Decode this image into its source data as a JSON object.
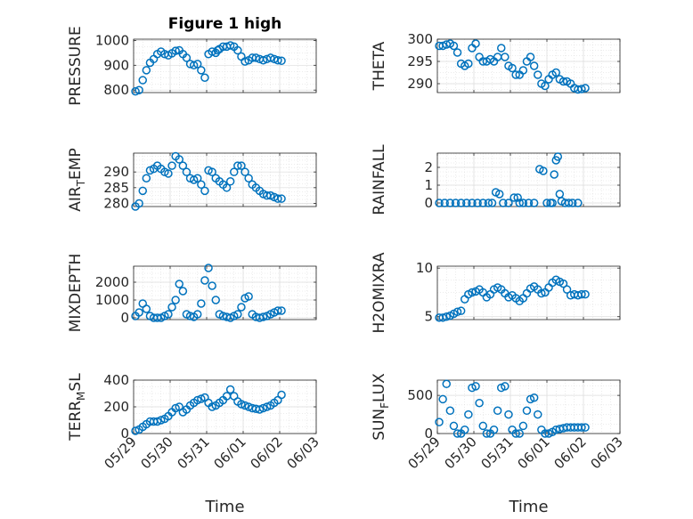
{
  "page_title": "Figure 1 high",
  "chart_data": [
    {
      "type": "scatter",
      "title": "Figure 1 high",
      "xlabel": "",
      "ylabel": "PRESSURE",
      "ylim": [
        790,
        1005
      ],
      "yticks": [
        800,
        900,
        1000
      ],
      "xlim": [
        "05/29",
        "06/03"
      ],
      "xticks": [
        "05/29",
        "05/30",
        "05/31",
        "06/01",
        "06/02",
        "06/03"
      ],
      "grid": true,
      "series": [
        {
          "color": "#0072BD",
          "marker": "circle-open",
          "x": [
            0.05,
            0.15,
            0.25,
            0.35,
            0.45,
            0.55,
            0.65,
            0.75,
            0.85,
            0.95,
            1.05,
            1.15,
            1.25,
            1.35,
            1.45,
            1.55,
            1.65,
            1.75,
            1.85,
            1.95,
            2.05,
            2.15,
            2.25,
            2.3,
            2.35,
            2.45,
            2.55,
            2.65,
            2.75,
            2.85,
            2.95,
            3.05,
            3.15,
            3.25,
            3.35,
            3.45,
            3.55,
            3.65,
            3.75,
            3.85,
            3.95,
            4.05
          ],
          "y": [
            795,
            800,
            840,
            880,
            910,
            925,
            945,
            955,
            945,
            940,
            948,
            958,
            960,
            945,
            930,
            905,
            900,
            905,
            880,
            850,
            945,
            955,
            950,
            960,
            965,
            975,
            975,
            980,
            975,
            960,
            935,
            915,
            920,
            930,
            930,
            925,
            920,
            925,
            930,
            925,
            920,
            918
          ]
        }
      ]
    },
    {
      "type": "scatter",
      "title": "",
      "xlabel": "",
      "ylabel": "THETA",
      "ylim": [
        288,
        300
      ],
      "yticks": [
        290,
        295,
        300
      ],
      "xlim": [
        "05/29",
        "06/03"
      ],
      "xticks": [
        "05/29",
        "05/30",
        "05/31",
        "06/01",
        "06/02",
        "06/03"
      ],
      "grid": true,
      "series": [
        {
          "color": "#0072BD",
          "marker": "circle-open",
          "x": [
            0.05,
            0.15,
            0.25,
            0.35,
            0.45,
            0.55,
            0.65,
            0.75,
            0.85,
            0.95,
            1.05,
            1.15,
            1.25,
            1.35,
            1.45,
            1.55,
            1.65,
            1.75,
            1.85,
            1.95,
            2.05,
            2.15,
            2.25,
            2.35,
            2.45,
            2.55,
            2.65,
            2.75,
            2.85,
            2.95,
            3.05,
            3.15,
            3.25,
            3.35,
            3.45,
            3.55,
            3.65,
            3.75,
            3.85,
            3.95,
            4.05
          ],
          "y": [
            298.5,
            298.5,
            298.8,
            299,
            298.5,
            297,
            294.5,
            294,
            294.5,
            298,
            299,
            296,
            295,
            295,
            295.5,
            295,
            296,
            298,
            296,
            294,
            293.5,
            292,
            292,
            293,
            295,
            296,
            294,
            292,
            290,
            289.5,
            291,
            292,
            292.5,
            291,
            290.5,
            290.5,
            290,
            289,
            288.7,
            288.8,
            289
          ]
        }
      ]
    },
    {
      "type": "scatter",
      "title": "",
      "xlabel": "",
      "ylabel": "AIR_TEMP",
      "ylim": [
        279,
        296
      ],
      "yticks": [
        280,
        285,
        290
      ],
      "xlim": [
        "05/29",
        "06/03"
      ],
      "xticks": [
        "05/29",
        "05/30",
        "05/31",
        "06/01",
        "06/02",
        "06/03"
      ],
      "grid": true,
      "series": [
        {
          "color": "#0072BD",
          "marker": "circle-open",
          "x": [
            0.05,
            0.15,
            0.25,
            0.35,
            0.45,
            0.55,
            0.65,
            0.75,
            0.85,
            0.95,
            1.05,
            1.15,
            1.25,
            1.35,
            1.45,
            1.55,
            1.65,
            1.75,
            1.85,
            1.95,
            2.05,
            2.15,
            2.25,
            2.35,
            2.45,
            2.55,
            2.65,
            2.75,
            2.85,
            2.95,
            3.05,
            3.15,
            3.25,
            3.35,
            3.45,
            3.55,
            3.65,
            3.75,
            3.85,
            3.95,
            4.05
          ],
          "y": [
            279,
            280,
            284,
            288,
            290.5,
            291,
            292,
            291,
            290,
            289.5,
            292,
            295,
            294,
            292,
            290,
            288,
            287.5,
            288,
            286,
            284,
            290.5,
            290,
            288,
            287,
            286,
            285,
            287,
            290,
            292,
            292,
            290,
            288,
            286,
            285,
            284,
            283,
            282.5,
            282.5,
            282,
            281.5,
            281.5
          ]
        }
      ]
    },
    {
      "type": "scatter",
      "title": "",
      "xlabel": "",
      "ylabel": "RAINFALL",
      "ylim": [
        -0.2,
        2.8
      ],
      "yticks": [
        0,
        1,
        2
      ],
      "xlim": [
        "05/29",
        "06/03"
      ],
      "xticks": [
        "05/29",
        "05/30",
        "05/31",
        "06/01",
        "06/02",
        "06/03"
      ],
      "grid": true,
      "series": [
        {
          "color": "#0072BD",
          "marker": "circle-open",
          "x": [
            0.05,
            0.2,
            0.35,
            0.5,
            0.65,
            0.8,
            0.95,
            1.1,
            1.25,
            1.4,
            1.5,
            1.6,
            1.7,
            1.8,
            1.95,
            2.1,
            2.2,
            2.25,
            2.35,
            2.5,
            2.65,
            2.8,
            2.9,
            3.0,
            3.1,
            3.15,
            3.2,
            3.25,
            3.3,
            3.35,
            3.4,
            3.5,
            3.6,
            3.7,
            3.85
          ],
          "y": [
            0,
            0,
            0,
            0,
            0,
            0,
            0,
            0,
            0,
            0,
            0,
            0.6,
            0.5,
            0,
            0,
            0.3,
            0.3,
            0,
            0,
            0,
            0,
            1.9,
            1.8,
            0,
            0,
            0,
            1.6,
            2.4,
            2.6,
            0.5,
            0.1,
            0,
            0,
            0,
            0
          ]
        }
      ]
    },
    {
      "type": "scatter",
      "title": "",
      "xlabel": "",
      "ylabel": "MIXDEPTH",
      "ylim": [
        -100,
        2900
      ],
      "yticks": [
        0,
        1000,
        2000
      ],
      "xlim": [
        "05/29",
        "06/03"
      ],
      "xticks": [
        "05/29",
        "05/30",
        "05/31",
        "06/01",
        "06/02",
        "06/03"
      ],
      "grid": true,
      "series": [
        {
          "color": "#0072BD",
          "marker": "circle-open",
          "x": [
            0.05,
            0.15,
            0.25,
            0.35,
            0.45,
            0.55,
            0.65,
            0.75,
            0.85,
            0.95,
            1.05,
            1.15,
            1.25,
            1.35,
            1.45,
            1.55,
            1.65,
            1.75,
            1.85,
            1.95,
            2.05,
            2.15,
            2.25,
            2.35,
            2.45,
            2.55,
            2.65,
            2.75,
            2.85,
            2.95,
            3.05,
            3.15,
            3.25,
            3.35,
            3.45,
            3.55,
            3.65,
            3.75,
            3.85,
            3.95,
            4.05
          ],
          "y": [
            100,
            300,
            800,
            500,
            100,
            0,
            0,
            0,
            100,
            200,
            600,
            1000,
            1900,
            1500,
            200,
            100,
            50,
            200,
            800,
            2100,
            2800,
            1800,
            1000,
            200,
            100,
            50,
            0,
            100,
            200,
            600,
            1100,
            1200,
            200,
            50,
            0,
            50,
            100,
            200,
            300,
            400,
            400
          ]
        }
      ]
    },
    {
      "type": "scatter",
      "title": "",
      "xlabel": "",
      "ylabel": "H2OMIXRA",
      "ylim": [
        4.7,
        10.2
      ],
      "yticks": [
        5,
        10
      ],
      "xlim": [
        "05/29",
        "06/03"
      ],
      "xticks": [
        "05/29",
        "05/30",
        "05/31",
        "06/01",
        "06/02",
        "06/03"
      ],
      "grid": true,
      "series": [
        {
          "color": "#0072BD",
          "marker": "circle-open",
          "x": [
            0.05,
            0.15,
            0.25,
            0.35,
            0.45,
            0.55,
            0.65,
            0.75,
            0.85,
            0.95,
            1.05,
            1.15,
            1.25,
            1.35,
            1.45,
            1.55,
            1.65,
            1.75,
            1.85,
            1.95,
            2.05,
            2.15,
            2.25,
            2.35,
            2.45,
            2.55,
            2.65,
            2.75,
            2.85,
            2.95,
            3.05,
            3.15,
            3.25,
            3.35,
            3.45,
            3.55,
            3.65,
            3.75,
            3.85,
            3.95,
            4.05
          ],
          "y": [
            4.9,
            4.9,
            5,
            5.1,
            5.3,
            5.5,
            5.6,
            6.8,
            7.3,
            7.5,
            7.6,
            7.8,
            7.5,
            7,
            7.3,
            7.8,
            8,
            7.8,
            7.4,
            7,
            7.2,
            6.9,
            6.6,
            6.9,
            7.4,
            7.9,
            8.1,
            7.8,
            7.4,
            7.5,
            8,
            8.5,
            8.8,
            8.6,
            8.4,
            7.8,
            7.2,
            7.3,
            7.2,
            7.3,
            7.3
          ]
        }
      ]
    },
    {
      "type": "scatter",
      "title": "",
      "xlabel": "Time",
      "ylabel": "TERR_MSL",
      "ylim": [
        0,
        400
      ],
      "yticks": [
        0,
        200,
        400
      ],
      "xlim": [
        "05/29",
        "06/03"
      ],
      "xticks": [
        "05/29",
        "05/30",
        "05/31",
        "06/01",
        "06/02",
        "06/03"
      ],
      "grid": true,
      "series": [
        {
          "color": "#0072BD",
          "marker": "circle-open",
          "x": [
            0.05,
            0.15,
            0.25,
            0.35,
            0.45,
            0.55,
            0.65,
            0.75,
            0.85,
            0.95,
            1.05,
            1.15,
            1.25,
            1.35,
            1.45,
            1.55,
            1.65,
            1.75,
            1.85,
            1.95,
            2.05,
            2.15,
            2.25,
            2.35,
            2.45,
            2.55,
            2.65,
            2.75,
            2.85,
            2.95,
            3.05,
            3.15,
            3.25,
            3.35,
            3.45,
            3.55,
            3.65,
            3.75,
            3.85,
            3.95,
            4.05
          ],
          "y": [
            20,
            30,
            50,
            70,
            90,
            90,
            90,
            100,
            110,
            130,
            160,
            190,
            200,
            160,
            180,
            210,
            230,
            250,
            260,
            270,
            230,
            200,
            210,
            230,
            250,
            280,
            330,
            280,
            240,
            220,
            210,
            200,
            190,
            185,
            180,
            190,
            200,
            210,
            230,
            250,
            290
          ]
        }
      ]
    },
    {
      "type": "scatter",
      "title": "",
      "xlabel": "Time",
      "ylabel": "SUN_FLUX",
      "ylim": [
        0,
        700
      ],
      "yticks": [
        0,
        500
      ],
      "xlim": [
        "05/29",
        "06/03"
      ],
      "xticks": [
        "05/29",
        "05/30",
        "05/31",
        "06/01",
        "06/02",
        "06/03"
      ],
      "grid": true,
      "series": [
        {
          "color": "#0072BD",
          "marker": "circle-open",
          "x": [
            0.05,
            0.15,
            0.25,
            0.35,
            0.45,
            0.55,
            0.65,
            0.75,
            0.85,
            0.95,
            1.05,
            1.15,
            1.25,
            1.35,
            1.45,
            1.55,
            1.65,
            1.75,
            1.85,
            1.95,
            2.05,
            2.15,
            2.25,
            2.35,
            2.45,
            2.55,
            2.65,
            2.75,
            2.85,
            2.95,
            3.05,
            3.15,
            3.25,
            3.35,
            3.45,
            3.55,
            3.65,
            3.75,
            3.85,
            3.95,
            4.05
          ],
          "y": [
            150,
            450,
            650,
            300,
            100,
            0,
            0,
            50,
            250,
            600,
            620,
            400,
            100,
            0,
            0,
            50,
            300,
            600,
            620,
            250,
            50,
            0,
            0,
            100,
            300,
            450,
            470,
            250,
            50,
            0,
            0,
            20,
            50,
            60,
            70,
            80,
            80,
            80,
            80,
            80,
            80
          ]
        }
      ]
    }
  ]
}
